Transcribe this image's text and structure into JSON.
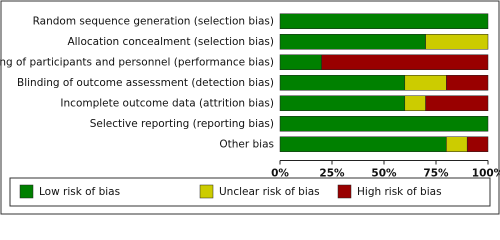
{
  "chart_data": {
    "type": "stacked-barh",
    "categories": [
      "Random sequence generation (selection bias)",
      "Allocation concealment (selection bias)",
      "Blinding of participants and personnel (performance bias)",
      "Blinding of outcome assessment (detection bias)",
      "Incomplete outcome data (attrition bias)",
      "Selective reporting (reporting bias)",
      "Other bias"
    ],
    "series": [
      {
        "name": "Low risk of bias",
        "color": "#008000",
        "values": [
          100,
          70,
          20,
          60,
          60,
          100,
          80
        ]
      },
      {
        "name": "Unclear risk of bias",
        "color": "#cccc00",
        "values": [
          0,
          30,
          0,
          20,
          10,
          0,
          10
        ]
      },
      {
        "name": "High risk of bias",
        "color": "#990000",
        "values": [
          0,
          0,
          80,
          20,
          30,
          0,
          10
        ]
      }
    ],
    "xlim": [
      0,
      100
    ],
    "xticks": [
      {
        "value": 0,
        "label": "0%"
      },
      {
        "value": 25,
        "label": "25%"
      },
      {
        "value": 50,
        "label": "50%"
      },
      {
        "value": 75,
        "label": "75%"
      },
      {
        "value": 100,
        "label": "100%"
      }
    ],
    "legend": "bottom"
  }
}
